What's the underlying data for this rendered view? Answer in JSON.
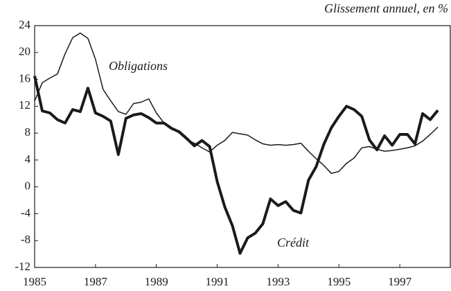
{
  "chart_data": {
    "type": "line",
    "annotations": {
      "unit": "Glissement annuel, en %",
      "obligations": "Obligations",
      "credit": "Crédit"
    },
    "x": [
      1985,
      1985.25,
      1985.5,
      1985.75,
      1986,
      1986.25,
      1986.5,
      1986.75,
      1987,
      1987.25,
      1987.5,
      1987.75,
      1988,
      1988.25,
      1988.5,
      1988.75,
      1989,
      1989.25,
      1989.5,
      1989.75,
      1990,
      1990.25,
      1990.5,
      1990.75,
      1991,
      1991.25,
      1991.5,
      1991.75,
      1992,
      1992.25,
      1992.5,
      1992.75,
      1993,
      1993.25,
      1993.5,
      1993.75,
      1994,
      1994.25,
      1994.5,
      1994.75,
      1995,
      1995.25,
      1995.5,
      1995.75,
      1996,
      1996.25,
      1996.5,
      1996.75,
      1997,
      1997.25,
      1997.5,
      1997.75,
      1998,
      1998.25
    ],
    "series": [
      {
        "name": "Crédit",
        "color": "#1a1a1a",
        "line_width": 4,
        "values": [
          16.5,
          11.3,
          11,
          10,
          9.5,
          11.5,
          11.2,
          14.7,
          11,
          10.5,
          9.8,
          4.8,
          10.2,
          10.7,
          10.9,
          10.3,
          9.5,
          9.5,
          8.7,
          8.2,
          7.2,
          6.1,
          6.9,
          6,
          0.8,
          -3,
          -5.8,
          -9.9,
          -7.6,
          -6.9,
          -5.5,
          -1.8,
          -2.8,
          -2.2,
          -3.5,
          -3.9,
          1,
          3,
          6.3,
          8.8,
          10.5,
          12,
          11.5,
          10.5,
          7,
          5.5,
          7.6,
          6.2,
          7.8,
          7.8,
          6.4,
          10.9,
          10,
          11.4
        ]
      },
      {
        "name": "Obligations",
        "color": "#1a1a1a",
        "line_width": 1.5,
        "values": [
          12.8,
          15.5,
          16.2,
          16.8,
          19.8,
          22.2,
          22.9,
          22.1,
          19,
          14.5,
          12.8,
          11.2,
          10.8,
          12.4,
          12.6,
          13.1,
          11,
          9.5,
          8.8,
          8,
          7,
          6.5,
          5.8,
          5.2,
          6.2,
          6.9,
          8.1,
          7.9,
          7.7,
          7,
          6.4,
          6.2,
          6.3,
          6.2,
          6.3,
          6.5,
          5.3,
          4.2,
          3.2,
          2,
          2.3,
          3.5,
          4.3,
          5.8,
          6,
          5.6,
          5.3,
          5.4,
          5.6,
          5.8,
          6.1,
          6.8,
          7.8,
          8.9
        ]
      }
    ],
    "xlim": [
      1985,
      1998.66
    ],
    "xticks": [
      1985,
      1987,
      1989,
      1991,
      1993,
      1995,
      1997
    ],
    "ylim": [
      -12,
      24
    ],
    "yticks": [
      -12,
      -8,
      -4,
      0,
      4,
      8,
      12,
      16,
      20,
      24
    ]
  }
}
